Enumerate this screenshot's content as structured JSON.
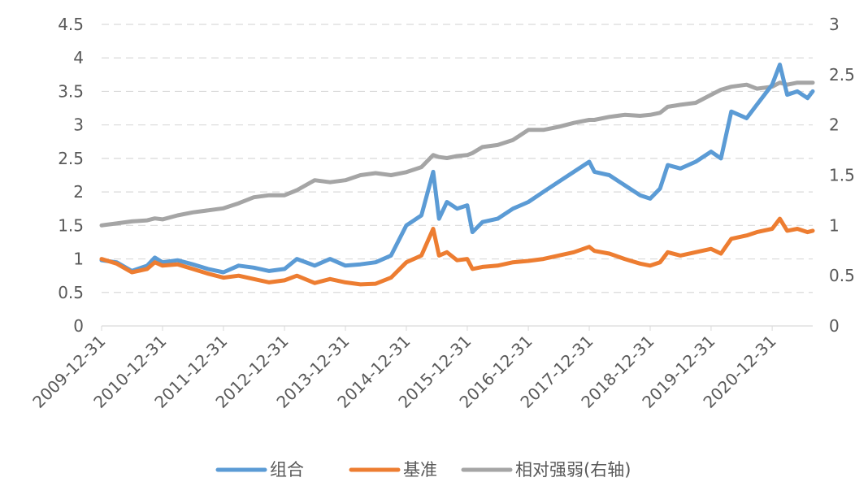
{
  "chart_data": {
    "type": "line",
    "title": "",
    "xlabel": "",
    "ylabel": "",
    "y_left": {
      "min": 0,
      "max": 4.5,
      "ticks": [
        "0",
        "0.5",
        "1",
        "1.5",
        "2",
        "2.5",
        "3",
        "3.5",
        "4",
        "4.5"
      ]
    },
    "y_right": {
      "min": 0,
      "max": 3,
      "ticks": [
        "0",
        "0.5",
        "1",
        "1.5",
        "2",
        "2.5",
        "3"
      ]
    },
    "x_range": [
      "2009-12-31",
      "2021-08-31"
    ],
    "x_ticks": [
      "2009-12-31",
      "2010-12-31",
      "2011-12-31",
      "2012-12-31",
      "2013-12-31",
      "2014-12-31",
      "2015-12-31",
      "2016-12-31",
      "2017-12-31",
      "2018-12-31",
      "2019-12-31",
      "2020-12-31"
    ],
    "grid": "horizontal-dashed",
    "legend": "bottom",
    "series": [
      {
        "name": "组合",
        "axis": "left",
        "color": "#5B9BD5",
        "x": [
          "2009-12-31",
          "2010-03-31",
          "2010-06-30",
          "2010-09-30",
          "2010-11-15",
          "2010-12-31",
          "2011-03-31",
          "2011-06-30",
          "2011-09-30",
          "2011-12-31",
          "2012-03-31",
          "2012-06-30",
          "2012-09-30",
          "2012-12-31",
          "2013-03-15",
          "2013-06-30",
          "2013-09-30",
          "2013-12-31",
          "2014-03-31",
          "2014-06-30",
          "2014-09-30",
          "2014-12-31",
          "2015-03-31",
          "2015-06-10",
          "2015-07-15",
          "2015-08-31",
          "2015-10-31",
          "2015-12-31",
          "2016-01-31",
          "2016-03-31",
          "2016-06-30",
          "2016-09-30",
          "2016-12-31",
          "2017-03-31",
          "2017-06-30",
          "2017-09-30",
          "2017-12-31",
          "2018-01-31",
          "2018-04-30",
          "2018-07-31",
          "2018-10-31",
          "2018-12-31",
          "2019-02-28",
          "2019-04-15",
          "2019-06-30",
          "2019-09-30",
          "2019-12-31",
          "2020-02-28",
          "2020-04-30",
          "2020-07-31",
          "2020-09-30",
          "2020-12-31",
          "2021-02-15",
          "2021-03-31",
          "2021-05-31",
          "2021-07-31",
          "2021-08-31"
        ],
        "y": [
          0.98,
          0.95,
          0.82,
          0.9,
          1.02,
          0.95,
          0.98,
          0.92,
          0.85,
          0.8,
          0.9,
          0.87,
          0.82,
          0.85,
          1.0,
          0.9,
          1.0,
          0.9,
          0.92,
          0.95,
          1.05,
          1.5,
          1.65,
          2.3,
          1.6,
          1.85,
          1.75,
          1.8,
          1.4,
          1.55,
          1.6,
          1.75,
          1.85,
          2.0,
          2.15,
          2.3,
          2.45,
          2.3,
          2.25,
          2.1,
          1.95,
          1.9,
          2.05,
          2.4,
          2.35,
          2.45,
          2.6,
          2.5,
          3.2,
          3.1,
          3.3,
          3.6,
          3.9,
          3.45,
          3.5,
          3.4,
          3.5
        ]
      },
      {
        "name": "基准",
        "axis": "left",
        "color": "#ED7D31",
        "x": [
          "2009-12-31",
          "2010-03-31",
          "2010-06-30",
          "2010-09-30",
          "2010-11-15",
          "2010-12-31",
          "2011-03-31",
          "2011-06-30",
          "2011-09-30",
          "2011-12-31",
          "2012-03-31",
          "2012-06-30",
          "2012-09-30",
          "2012-12-31",
          "2013-03-15",
          "2013-06-30",
          "2013-09-30",
          "2013-12-31",
          "2014-03-31",
          "2014-06-30",
          "2014-09-30",
          "2014-12-31",
          "2015-03-31",
          "2015-06-10",
          "2015-07-15",
          "2015-08-31",
          "2015-10-31",
          "2015-12-31",
          "2016-01-31",
          "2016-03-31",
          "2016-06-30",
          "2016-09-30",
          "2016-12-31",
          "2017-03-31",
          "2017-06-30",
          "2017-09-30",
          "2017-12-31",
          "2018-01-31",
          "2018-04-30",
          "2018-07-31",
          "2018-10-31",
          "2018-12-31",
          "2019-02-28",
          "2019-04-15",
          "2019-06-30",
          "2019-09-30",
          "2019-12-31",
          "2020-02-28",
          "2020-04-30",
          "2020-07-31",
          "2020-09-30",
          "2020-12-31",
          "2021-02-15",
          "2021-03-31",
          "2021-05-31",
          "2021-07-31",
          "2021-08-31"
        ],
        "y": [
          1.0,
          0.93,
          0.8,
          0.85,
          0.95,
          0.9,
          0.92,
          0.85,
          0.78,
          0.72,
          0.75,
          0.7,
          0.65,
          0.68,
          0.75,
          0.64,
          0.7,
          0.65,
          0.62,
          0.63,
          0.72,
          0.95,
          1.05,
          1.45,
          1.05,
          1.1,
          0.98,
          1.0,
          0.85,
          0.88,
          0.9,
          0.95,
          0.97,
          1.0,
          1.05,
          1.1,
          1.18,
          1.12,
          1.08,
          1.0,
          0.93,
          0.9,
          0.95,
          1.1,
          1.05,
          1.1,
          1.15,
          1.08,
          1.3,
          1.35,
          1.4,
          1.45,
          1.6,
          1.42,
          1.45,
          1.4,
          1.42
        ]
      },
      {
        "name": "相对强弱(右轴)",
        "axis": "right",
        "color": "#A5A5A5",
        "x": [
          "2009-12-31",
          "2010-03-31",
          "2010-06-30",
          "2010-09-30",
          "2010-11-15",
          "2010-12-31",
          "2011-03-31",
          "2011-06-30",
          "2011-09-30",
          "2011-12-31",
          "2012-03-31",
          "2012-06-30",
          "2012-09-30",
          "2012-12-31",
          "2013-03-15",
          "2013-06-30",
          "2013-09-30",
          "2013-12-31",
          "2014-03-31",
          "2014-06-30",
          "2014-09-30",
          "2014-12-31",
          "2015-03-31",
          "2015-06-10",
          "2015-07-15",
          "2015-08-31",
          "2015-10-31",
          "2015-12-31",
          "2016-01-31",
          "2016-03-31",
          "2016-06-30",
          "2016-09-30",
          "2016-12-31",
          "2017-03-31",
          "2017-06-30",
          "2017-09-30",
          "2017-12-31",
          "2018-01-31",
          "2018-04-30",
          "2018-07-31",
          "2018-10-31",
          "2018-12-31",
          "2019-02-28",
          "2019-04-15",
          "2019-06-30",
          "2019-09-30",
          "2019-12-31",
          "2020-02-28",
          "2020-04-30",
          "2020-07-31",
          "2020-09-30",
          "2020-12-31",
          "2021-02-15",
          "2021-03-31",
          "2021-05-31",
          "2021-07-31",
          "2021-08-31"
        ],
        "y": [
          1.0,
          1.02,
          1.04,
          1.05,
          1.07,
          1.06,
          1.1,
          1.13,
          1.15,
          1.17,
          1.22,
          1.28,
          1.3,
          1.3,
          1.35,
          1.45,
          1.43,
          1.45,
          1.5,
          1.52,
          1.5,
          1.53,
          1.58,
          1.7,
          1.68,
          1.67,
          1.69,
          1.7,
          1.72,
          1.78,
          1.8,
          1.85,
          1.95,
          1.95,
          1.98,
          2.02,
          2.05,
          2.05,
          2.08,
          2.1,
          2.09,
          2.1,
          2.12,
          2.18,
          2.2,
          2.22,
          2.3,
          2.35,
          2.38,
          2.4,
          2.36,
          2.38,
          2.42,
          2.4,
          2.42,
          2.42,
          2.42
        ]
      }
    ]
  }
}
